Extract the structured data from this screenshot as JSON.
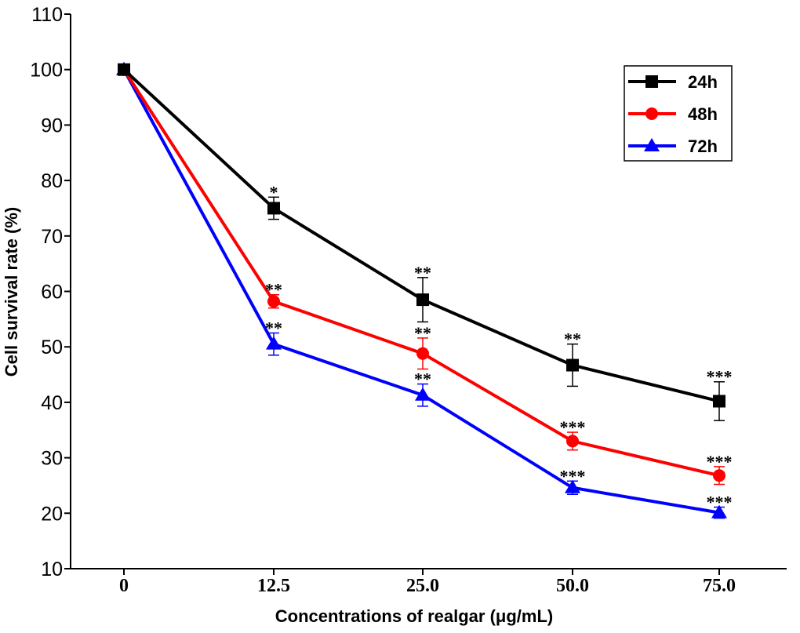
{
  "chart_data": {
    "type": "line",
    "title": "",
    "xlabel": "Concentrations of realgar (μg/mL)",
    "ylabel": "Cell survival rate (%)",
    "categories": [
      "0",
      "12.5",
      "25.0",
      "50.0",
      "75.0"
    ],
    "ylim": [
      10,
      110
    ],
    "yticks": [
      10,
      20,
      30,
      40,
      50,
      60,
      70,
      80,
      90,
      100,
      110
    ],
    "grid": false,
    "legend_position": "top-right",
    "series": [
      {
        "name": "24h",
        "color": "#000000",
        "marker": "square",
        "values": [
          100,
          75,
          58.5,
          46.7,
          40.2
        ],
        "errors": [
          0,
          2,
          4,
          3.8,
          3.5
        ],
        "significance": [
          "",
          "*",
          "**",
          "**",
          "***"
        ]
      },
      {
        "name": "48h",
        "color": "#ff0000",
        "marker": "circle",
        "values": [
          100,
          58.2,
          48.8,
          33,
          26.8
        ],
        "errors": [
          0,
          1.2,
          2.8,
          1.6,
          1.6
        ],
        "significance": [
          "",
          "**",
          "**",
          "***",
          "***"
        ]
      },
      {
        "name": "72h",
        "color": "#0000ff",
        "marker": "triangle",
        "values": [
          100,
          50.5,
          41.3,
          24.6,
          20.1
        ],
        "errors": [
          0,
          2,
          2,
          1.2,
          1
        ],
        "significance": [
          "",
          "**",
          "**",
          "***",
          "***"
        ]
      }
    ]
  }
}
